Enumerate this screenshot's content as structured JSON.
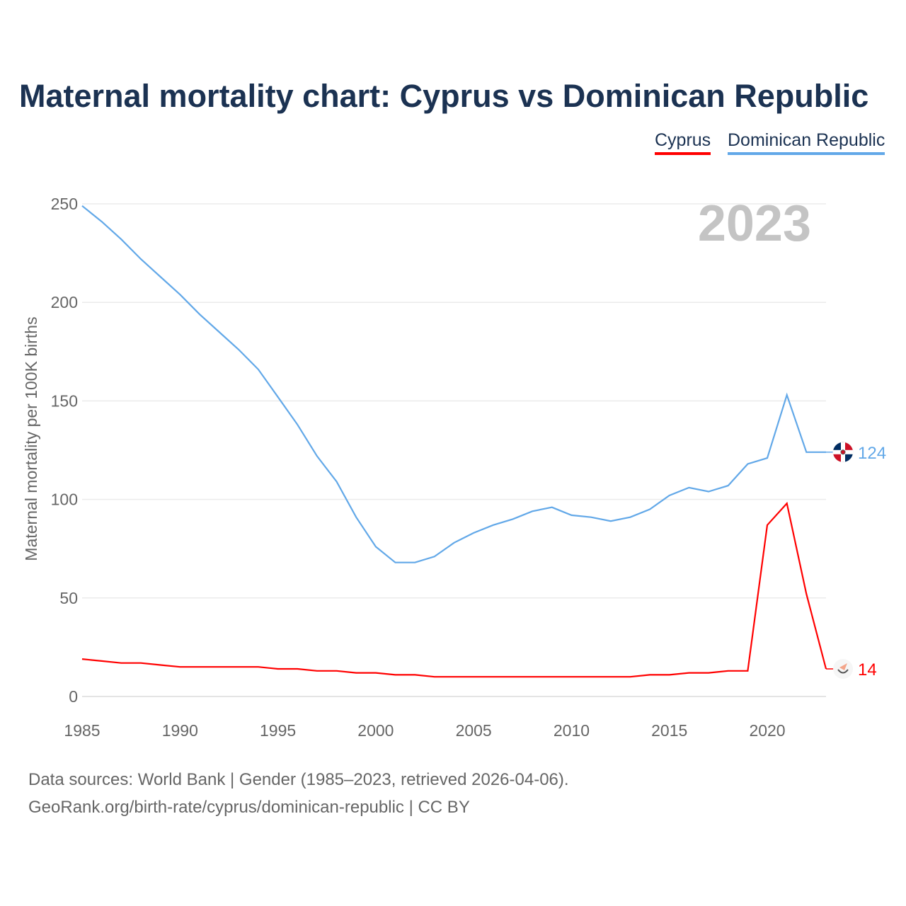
{
  "chart_data": {
    "type": "line",
    "title": "Maternal mortality chart: Cyprus vs Dominican Republic",
    "ylabel": "Maternal mortality per 100K births",
    "xlabel": "",
    "ylim": [
      0,
      250
    ],
    "xlim": [
      1985,
      2023
    ],
    "yticks": [
      0,
      50,
      100,
      150,
      200,
      250
    ],
    "xticks": [
      1985,
      1990,
      1995,
      2000,
      2005,
      2010,
      2015,
      2020
    ],
    "grid": true,
    "legend_position": "top-right",
    "year_label": "2023",
    "x": [
      1985,
      1986,
      1987,
      1988,
      1989,
      1990,
      1991,
      1992,
      1993,
      1994,
      1995,
      1996,
      1997,
      1998,
      1999,
      2000,
      2001,
      2002,
      2003,
      2004,
      2005,
      2006,
      2007,
      2008,
      2009,
      2010,
      2011,
      2012,
      2013,
      2014,
      2015,
      2016,
      2017,
      2018,
      2019,
      2020,
      2021,
      2022,
      2023
    ],
    "series": [
      {
        "name": "Cyprus",
        "color": "#ff0000",
        "end_label": "14",
        "values": [
          19,
          18,
          17,
          17,
          16,
          15,
          15,
          15,
          15,
          15,
          14,
          14,
          13,
          13,
          12,
          12,
          11,
          11,
          10,
          10,
          10,
          10,
          10,
          10,
          10,
          10,
          10,
          10,
          10,
          11,
          11,
          12,
          12,
          13,
          13,
          87,
          98,
          52,
          14
        ]
      },
      {
        "name": "Dominican Republic",
        "color": "#62a8e8",
        "end_label": "124",
        "values": [
          249,
          241,
          232,
          222,
          213,
          204,
          194,
          185,
          176,
          166,
          152,
          138,
          122,
          109,
          91,
          76,
          68,
          68,
          71,
          78,
          83,
          87,
          90,
          94,
          96,
          92,
          91,
          89,
          91,
          95,
          102,
          106,
          104,
          107,
          118,
          121,
          153,
          124,
          124
        ]
      }
    ]
  },
  "sources": {
    "line1": "Data sources: World Bank | Gender (1985–2023, retrieved 2026-04-06).",
    "line2": "GeoRank.org/birth-rate/cyprus/dominican-republic | CC BY"
  }
}
